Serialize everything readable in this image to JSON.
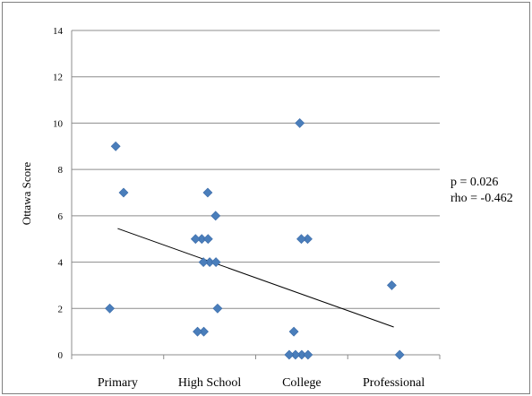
{
  "chart_data": {
    "type": "scatter",
    "title": "",
    "ylabel": "Ottawa Score",
    "xlabel": "",
    "ylim": [
      0,
      14
    ],
    "yticks": [
      0,
      2,
      4,
      6,
      8,
      10,
      12,
      14
    ],
    "grid": true,
    "categories": [
      "Primary",
      "High School",
      "College",
      "Professional"
    ],
    "points": [
      {
        "x": "Primary",
        "y": 9
      },
      {
        "x": "Primary",
        "y": 7
      },
      {
        "x": "Primary",
        "y": 2
      },
      {
        "x": "High School",
        "y": 7
      },
      {
        "x": "High School",
        "y": 6
      },
      {
        "x": "High School",
        "y": 5
      },
      {
        "x": "High School",
        "y": 5
      },
      {
        "x": "High School",
        "y": 5
      },
      {
        "x": "High School",
        "y": 4
      },
      {
        "x": "High School",
        "y": 4
      },
      {
        "x": "High School",
        "y": 4
      },
      {
        "x": "High School",
        "y": 2
      },
      {
        "x": "High School",
        "y": 1
      },
      {
        "x": "High School",
        "y": 1
      },
      {
        "x": "College",
        "y": 10
      },
      {
        "x": "College",
        "y": 5
      },
      {
        "x": "College",
        "y": 5
      },
      {
        "x": "College",
        "y": 1
      },
      {
        "x": "College",
        "y": 0
      },
      {
        "x": "College",
        "y": 0
      },
      {
        "x": "College",
        "y": 0
      },
      {
        "x": "College",
        "y": 0
      },
      {
        "x": "Professional",
        "y": 3
      },
      {
        "x": "Professional",
        "y": 0
      }
    ],
    "trendline": {
      "start": {
        "x": "Primary",
        "y": 5.45
      },
      "end": {
        "x": "Professional",
        "y": 1.2
      }
    },
    "marker_color": "#4a7ebb",
    "annotations": [
      "p = 0.026",
      "rho = -0.462"
    ]
  }
}
